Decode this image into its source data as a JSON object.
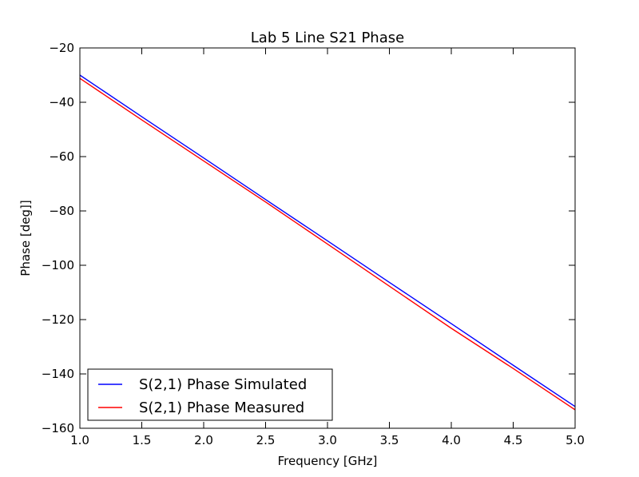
{
  "chart_data": {
    "type": "line",
    "title": "Lab 5 Line S21 Phase",
    "xlabel": "Frequency [GHz]",
    "ylabel": "Phase [deg]]",
    "xlim": [
      1.0,
      5.0
    ],
    "ylim": [
      -160,
      -20
    ],
    "x_ticks": [
      "1.0",
      "1.5",
      "2.0",
      "2.5",
      "3.0",
      "3.5",
      "4.0",
      "4.5",
      "5.0"
    ],
    "y_ticks": [
      "−20",
      "−40",
      "−60",
      "−80",
      "−100",
      "−120",
      "−140",
      "−160"
    ],
    "x_tick_values": [
      1.0,
      1.5,
      2.0,
      2.5,
      3.0,
      3.5,
      4.0,
      4.5,
      5.0
    ],
    "y_tick_values": [
      -20,
      -40,
      -60,
      -80,
      -100,
      -120,
      -140,
      -160
    ],
    "grid": false,
    "legend_position": "lower-left",
    "series": [
      {
        "name": "S(2,1) Phase Simulated",
        "color": "#0000ff",
        "x": [
          1.0,
          1.5,
          2.0,
          2.5,
          3.0,
          3.5,
          4.0,
          4.5,
          5.0
        ],
        "y": [
          -30.0,
          -45.3,
          -60.5,
          -75.8,
          -91.0,
          -106.3,
          -121.5,
          -136.8,
          -152.0
        ]
      },
      {
        "name": "S(2,1) Phase Measured",
        "color": "#ff0000",
        "x": [
          1.0,
          1.5,
          2.0,
          2.5,
          3.0,
          3.5,
          4.0,
          4.5,
          5.0
        ],
        "y": [
          -31.2,
          -46.5,
          -61.6,
          -76.7,
          -92.2,
          -107.7,
          -123.2,
          -138.0,
          -153.2
        ]
      }
    ]
  }
}
